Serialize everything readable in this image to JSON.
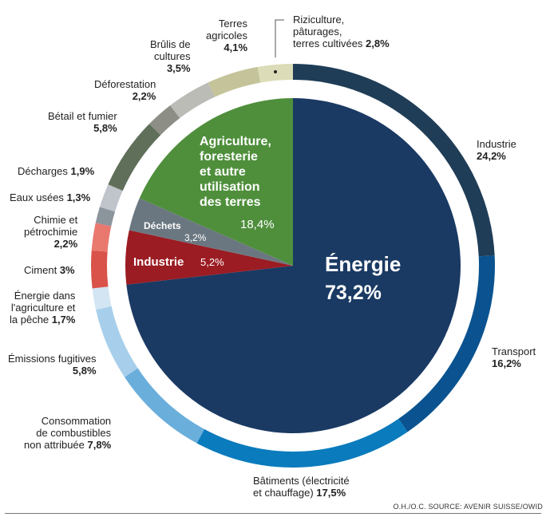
{
  "chart_data": {
    "type": "pie",
    "unit": "%",
    "inner": [
      {
        "label": "Énergie",
        "value": 73.2,
        "value_text": "73,2%",
        "color": "#1a3a63"
      },
      {
        "label": "Industrie",
        "value": 5.2,
        "value_text": "5,2%",
        "color": "#9b1c22"
      },
      {
        "label": "Déchets",
        "value": 3.2,
        "value_text": "3,2%",
        "color": "#6b7780"
      },
      {
        "label": "Agriculture,\nforesterie\net autre\nutilisation\ndes terres",
        "value": 18.4,
        "value_text": "18,4%",
        "color": "#4f8f3c"
      }
    ],
    "outer": [
      {
        "label": "Industrie",
        "value": 24.2,
        "value_text": "24,2%",
        "color": "#1f3d57"
      },
      {
        "label": "Transport",
        "value": 16.2,
        "value_text": "16,2%",
        "color": "#0a5390"
      },
      {
        "label": "Bâtiments (électricité\net chauffage)",
        "value": 17.5,
        "value_text": "17,5%",
        "color": "#0a7bbd"
      },
      {
        "label": "Consommation\nde combustibles\nnon attribuée",
        "value": 7.8,
        "value_text": "7,8%",
        "color": "#6aaedb"
      },
      {
        "label": "Émissions fugitives",
        "value": 5.8,
        "value_text": "5,8%",
        "color": "#a7cfeb"
      },
      {
        "label": "Énergie dans\nl'agriculture et\nla pêche",
        "value": 1.7,
        "value_text": "1,7%",
        "color": "#d3e5f3"
      },
      {
        "label": "Ciment",
        "value": 3.0,
        "value_text": "3%",
        "color": "#d9534a"
      },
      {
        "label": "Chimie et\npétrochimie",
        "value": 2.2,
        "value_text": "2,2%",
        "color": "#e9786e"
      },
      {
        "label": "Eaux usées",
        "value": 1.3,
        "value_text": "1,3%",
        "color": "#8c959c"
      },
      {
        "label": "Décharges",
        "value": 1.9,
        "value_text": "1,9%",
        "color": "#c0c4cb"
      },
      {
        "label": "Bétail et fumier",
        "value": 5.8,
        "value_text": "5,8%",
        "color": "#5f6f5a"
      },
      {
        "label": "Déforestation",
        "value": 2.2,
        "value_text": "2,2%",
        "color": "#8d8f87"
      },
      {
        "label": "Brûlis de\ncultures",
        "value": 3.5,
        "value_text": "3,5%",
        "color": "#bcbcb6"
      },
      {
        "label": "Terres\nagricoles",
        "value": 4.1,
        "value_text": "4,1%",
        "color": "#c4c39a"
      },
      {
        "label": "Riziculture,\npâturages,\nterres cultivées",
        "value": 2.8,
        "value_text": "2,8%",
        "color": "#dcdcb8"
      }
    ]
  },
  "source": "O.H./O.C.  SOURCE: AVENIR SUISSE/OWID"
}
